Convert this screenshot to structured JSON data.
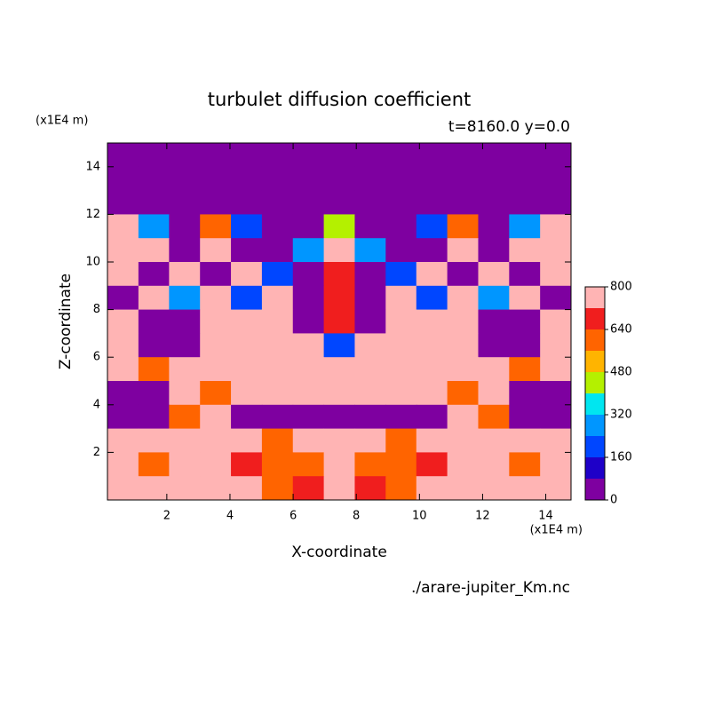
{
  "chart_data": {
    "type": "heatmap",
    "title": "turbulet diffusion coefficient",
    "subtitle": "t=8160.0 y=0.0",
    "x_label": "X-coordinate",
    "y_label": "Z-coordinate",
    "x_unit": "(x1E4 m)",
    "y_unit": "(x1E4 m)",
    "source": "./arare-jupiter_Km.nc",
    "xlim": [
      0.12,
      14.8
    ],
    "ylim": [
      0,
      15
    ],
    "xticks": [
      2,
      4,
      6,
      8,
      10,
      12,
      14
    ],
    "yticks": [
      2,
      4,
      6,
      8,
      10,
      12,
      14
    ],
    "x": [
      0.61,
      1.59,
      2.56,
      3.54,
      4.52,
      5.5,
      6.48,
      7.46,
      8.44,
      9.42,
      10.39,
      11.37,
      12.35,
      13.33,
      14.31
    ],
    "y": [
      14.5,
      13.5,
      12.5,
      11.5,
      10.5,
      9.5,
      8.5,
      7.5,
      6.5,
      5.5,
      4.5,
      3.5,
      2.5,
      1.5,
      0.5
    ],
    "z": [
      [
        40,
        40,
        40,
        40,
        40,
        40,
        40,
        40,
        40,
        40,
        40,
        40,
        40,
        40,
        40
      ],
      [
        40,
        40,
        40,
        40,
        40,
        40,
        40,
        40,
        40,
        40,
        40,
        40,
        40,
        40,
        40
      ],
      [
        40,
        40,
        40,
        40,
        40,
        40,
        40,
        40,
        40,
        40,
        40,
        40,
        40,
        40,
        40
      ],
      [
        760,
        300,
        40,
        600,
        200,
        40,
        40,
        400,
        40,
        40,
        200,
        600,
        40,
        300,
        760
      ],
      [
        760,
        760,
        40,
        760,
        40,
        40,
        300,
        760,
        300,
        40,
        40,
        760,
        40,
        760,
        760
      ],
      [
        760,
        40,
        760,
        40,
        760,
        200,
        40,
        700,
        40,
        200,
        760,
        40,
        760,
        40,
        760
      ],
      [
        40,
        760,
        300,
        760,
        200,
        760,
        40,
        700,
        40,
        760,
        200,
        760,
        300,
        760,
        40
      ],
      [
        760,
        40,
        40,
        760,
        760,
        760,
        40,
        700,
        40,
        760,
        760,
        760,
        40,
        40,
        760
      ],
      [
        760,
        40,
        40,
        760,
        760,
        760,
        760,
        200,
        760,
        760,
        760,
        760,
        40,
        40,
        760
      ],
      [
        760,
        600,
        760,
        760,
        760,
        760,
        760,
        760,
        760,
        760,
        760,
        760,
        760,
        600,
        760
      ],
      [
        40,
        40,
        760,
        600,
        760,
        760,
        760,
        760,
        760,
        760,
        760,
        600,
        760,
        40,
        40
      ],
      [
        40,
        40,
        600,
        760,
        40,
        40,
        40,
        40,
        40,
        40,
        40,
        760,
        600,
        40,
        40
      ],
      [
        760,
        760,
        760,
        760,
        760,
        600,
        760,
        760,
        760,
        600,
        760,
        760,
        760,
        760,
        760
      ],
      [
        760,
        600,
        760,
        760,
        700,
        600,
        560,
        760,
        560,
        600,
        700,
        760,
        760,
        600,
        760
      ],
      [
        760,
        760,
        760,
        760,
        760,
        600,
        700,
        760,
        700,
        600,
        760,
        760,
        760,
        760,
        760
      ]
    ],
    "levels": [
      0,
      80,
      160,
      240,
      320,
      400,
      480,
      560,
      640,
      720,
      800
    ],
    "colors": [
      "#7e00a0",
      "#1e00c8",
      "#0046ff",
      "#0096ff",
      "#00e6f0",
      "#b4f000",
      "#ffb400",
      "#ff6400",
      "#f01e1e",
      "#ffb4b4"
    ],
    "colorbar_ticks": [
      0,
      160,
      320,
      480,
      640,
      800
    ]
  }
}
